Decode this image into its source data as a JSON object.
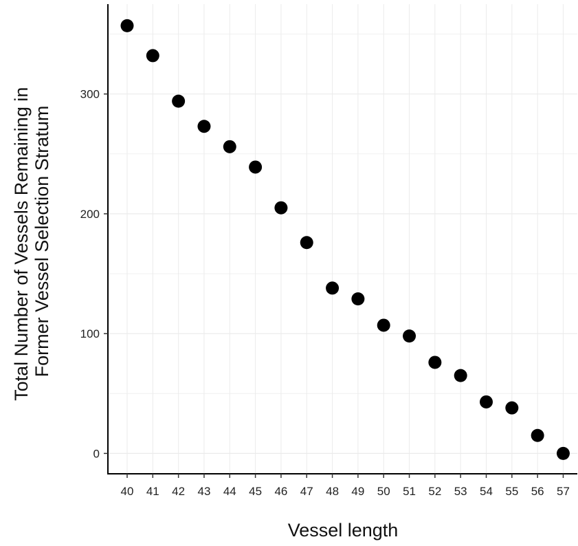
{
  "chart_data": {
    "type": "scatter",
    "title": "",
    "xlabel": "Vessel length",
    "ylabel_lines": [
      "Total Number of Vessels Remaining in",
      "Former Vessel Selection Stratum"
    ],
    "x": [
      40,
      41,
      42,
      43,
      44,
      45,
      46,
      47,
      48,
      49,
      50,
      51,
      52,
      53,
      54,
      55,
      56,
      57
    ],
    "y": [
      357,
      332,
      294,
      273,
      256,
      239,
      205,
      176,
      138,
      129,
      107,
      98,
      76,
      65,
      43,
      38,
      15,
      0
    ],
    "x_ticks": [
      40,
      41,
      42,
      43,
      44,
      45,
      46,
      47,
      48,
      49,
      50,
      51,
      52,
      53,
      54,
      55,
      56,
      57
    ],
    "y_ticks": [
      0,
      100,
      200,
      300
    ],
    "xlim": [
      39.25,
      57.55
    ],
    "ylim": [
      -17,
      375
    ],
    "grid": true,
    "legend": "none",
    "point_color": "#000000",
    "grid_color": "#ebebeb"
  }
}
